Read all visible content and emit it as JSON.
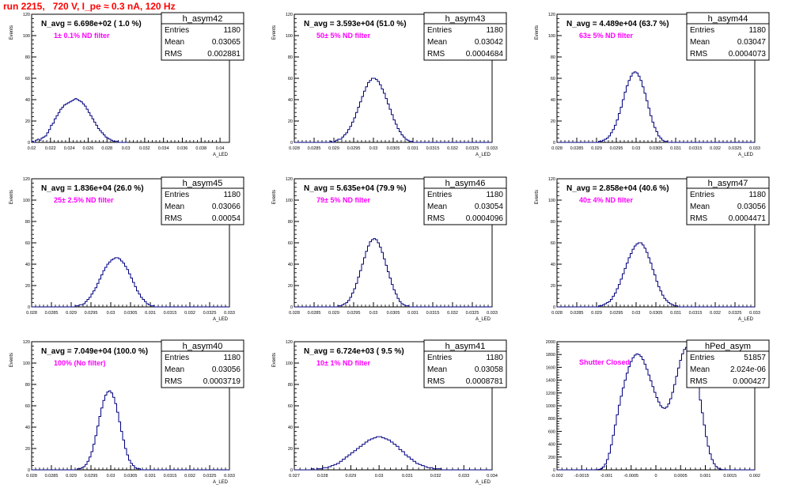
{
  "run_title": "run 2215,   720 V, I_pe ≈ 0.3 nA, 120 Hz",
  "colors": {
    "histogram": "#000080",
    "annotation": "#ff00ff",
    "run_title": "#ff0000",
    "frame": "#000000"
  },
  "stats_labels": {
    "entries": "Entries",
    "mean": "Mean",
    "rms": "RMS"
  },
  "chart_data": [
    {
      "type": "histogram",
      "title": "h_asym42",
      "navg": "N_avg = 6.698e+02 ( 1.0 %)",
      "filter": "1± 0.1% ND filter",
      "ylabel": "Events",
      "xlabel": "A_LED",
      "entries": "1180",
      "mean": "0.03065",
      "rms": "0.002881",
      "xlim": [
        0.02,
        0.041
      ],
      "ylim": [
        0,
        120
      ],
      "xticks": [
        0.02,
        0.022,
        0.024,
        0.026,
        0.028,
        0.03,
        0.032,
        0.034,
        0.036,
        0.038,
        0.04
      ],
      "xtick_labels": [
        "0.02",
        "0.022",
        "0.024",
        "0.026",
        "0.028",
        "0.03",
        "0.032",
        "0.034",
        "0.036",
        "0.038",
        "0.04"
      ],
      "yticks": [
        0,
        20,
        40,
        60,
        80,
        100,
        120
      ],
      "ytick_labels": [
        "0",
        "20",
        "40",
        "60",
        "80",
        "100",
        "120"
      ],
      "bin_width": 0.0002,
      "values": [
        1,
        0,
        2,
        3,
        2,
        4,
        5,
        6,
        9,
        12,
        16,
        18,
        22,
        25,
        28,
        31,
        33,
        35,
        36,
        37,
        38,
        39,
        40,
        41,
        40,
        39,
        38,
        36,
        34,
        31,
        28,
        25,
        22,
        19,
        16,
        13,
        11,
        9,
        7,
        5,
        4,
        3,
        2,
        1,
        1,
        1,
        0,
        0,
        0,
        0,
        0
      ]
    },
    {
      "type": "histogram",
      "title": "h_asym43",
      "navg": "N_avg = 3.593e+04 (51.0 %)",
      "filter": "50± 5% ND filter",
      "ylabel": "Events",
      "xlabel": "A_LED",
      "entries": "1180",
      "mean": "0.03042",
      "rms": "0.0004684",
      "xlim": [
        0.028,
        0.033
      ],
      "ylim": [
        0,
        120
      ],
      "xticks": [
        0.028,
        0.0285,
        0.029,
        0.0295,
        0.03,
        0.0305,
        0.031,
        0.0315,
        0.032,
        0.0325,
        0.033
      ],
      "xtick_labels": [
        "0.028",
        "0.0285",
        "0.029",
        "0.0295",
        "0.03",
        "0.0305",
        "0.031",
        "0.0315",
        "0.032",
        "0.0325",
        "0.033"
      ],
      "yticks": [
        0,
        20,
        40,
        60,
        80,
        100,
        120
      ],
      "ytick_labels": [
        "0",
        "20",
        "40",
        "60",
        "80",
        "100",
        "120"
      ],
      "bin_width": 5e-05,
      "values": [
        0,
        0,
        0,
        0,
        0,
        0,
        0,
        0,
        0,
        0,
        0,
        0,
        0,
        0,
        0,
        0,
        0,
        0,
        1,
        0,
        1,
        2,
        3,
        3,
        5,
        7,
        9,
        12,
        15,
        19,
        23,
        28,
        33,
        38,
        43,
        48,
        52,
        56,
        58,
        60,
        60,
        59,
        57,
        54,
        50,
        46,
        41,
        36,
        31,
        26,
        21,
        17,
        13,
        10,
        7,
        5,
        3,
        2,
        1,
        1,
        0,
        0,
        0,
        0,
        0,
        0,
        0,
        0,
        0,
        0,
        0,
        0,
        0,
        0,
        0,
        0,
        0,
        0,
        0,
        0,
        0,
        0,
        0,
        0,
        0,
        0,
        0,
        0,
        0,
        0,
        0,
        0,
        0,
        0,
        0,
        0,
        0,
        0,
        0,
        0
      ]
    },
    {
      "type": "histogram",
      "title": "h_asym44",
      "navg": "N_avg = 4.489e+04 (63.7 %)",
      "filter": "63± 5% ND filter",
      "ylabel": "Events",
      "xlabel": "A_LED",
      "entries": "1180",
      "mean": "0.03047",
      "rms": "0.0004073",
      "xlim": [
        0.028,
        0.033
      ],
      "ylim": [
        0,
        120
      ],
      "xticks": [
        0.028,
        0.0285,
        0.029,
        0.0295,
        0.03,
        0.0305,
        0.031,
        0.0315,
        0.032,
        0.0325,
        0.033
      ],
      "xtick_labels": [
        "0.028",
        "0.0285",
        "0.029",
        "0.0295",
        "0.03",
        "0.0305",
        "0.031",
        "0.0315",
        "0.032",
        "0.0325",
        "0.033"
      ],
      "yticks": [
        0,
        20,
        40,
        60,
        80,
        100,
        120
      ],
      "ytick_labels": [
        "0",
        "20",
        "40",
        "60",
        "80",
        "100",
        "120"
      ],
      "bin_width": 5e-05,
      "values": [
        0,
        0,
        0,
        0,
        0,
        0,
        0,
        0,
        0,
        0,
        0,
        0,
        0,
        0,
        0,
        0,
        0,
        0,
        0,
        0,
        0,
        1,
        1,
        2,
        3,
        4,
        6,
        9,
        12,
        16,
        21,
        27,
        33,
        40,
        47,
        53,
        58,
        62,
        65,
        66,
        65,
        62,
        58,
        52,
        46,
        39,
        32,
        25,
        19,
        14,
        10,
        6,
        4,
        2,
        1,
        1,
        0,
        0,
        0,
        0,
        0,
        0,
        0,
        0,
        0,
        0,
        0,
        0,
        0,
        0,
        0,
        0,
        0,
        0,
        0,
        0,
        0,
        0,
        0,
        0,
        0,
        0,
        0,
        0,
        0,
        0,
        0,
        0,
        0,
        0,
        0,
        0,
        0,
        0,
        0,
        0,
        0,
        0,
        0,
        0
      ]
    },
    {
      "type": "histogram",
      "title": "h_asym45",
      "navg": "N_avg = 1.836e+04 (26.0 %)",
      "filter": "25± 2.5% ND filter",
      "ylabel": "Events",
      "xlabel": "A_LED",
      "entries": "1180",
      "mean": "0.03066",
      "rms": "0.00054",
      "xlim": [
        0.028,
        0.033
      ],
      "ylim": [
        0,
        120
      ],
      "xticks": [
        0.028,
        0.0285,
        0.029,
        0.0295,
        0.03,
        0.0305,
        0.031,
        0.0315,
        0.032,
        0.0325,
        0.033
      ],
      "xtick_labels": [
        "0.028",
        "0.0285",
        "0.029",
        "0.0295",
        "0.03",
        "0.0305",
        "0.031",
        "0.0315",
        "0.032",
        "0.0325",
        "0.033"
      ],
      "yticks": [
        0,
        20,
        40,
        60,
        80,
        100,
        120
      ],
      "ytick_labels": [
        "0",
        "20",
        "40",
        "60",
        "80",
        "100",
        "120"
      ],
      "bin_width": 5e-05,
      "values": [
        0,
        0,
        0,
        0,
        0,
        0,
        0,
        0,
        0,
        0,
        0,
        0,
        0,
        0,
        0,
        0,
        0,
        0,
        0,
        0,
        0,
        0,
        1,
        1,
        2,
        2,
        3,
        5,
        7,
        9,
        12,
        15,
        18,
        22,
        26,
        30,
        34,
        37,
        40,
        42,
        44,
        45,
        46,
        46,
        45,
        43,
        41,
        38,
        35,
        31,
        27,
        23,
        19,
        15,
        12,
        9,
        7,
        5,
        3,
        2,
        1,
        1,
        0,
        0,
        0,
        0,
        0,
        0,
        0,
        0,
        0,
        0,
        0,
        0,
        0,
        0,
        0,
        0,
        0,
        0,
        0,
        0,
        0,
        0,
        0,
        0,
        0,
        0,
        0,
        0,
        0,
        0,
        0,
        0,
        0,
        0,
        0,
        0,
        0,
        0
      ]
    },
    {
      "type": "histogram",
      "title": "h_asym46",
      "navg": "N_avg = 5.635e+04 (79.9 %)",
      "filter": "79± 5% ND filter",
      "ylabel": "Events",
      "xlabel": "A_LED",
      "entries": "1180",
      "mean": "0.03054",
      "rms": "0.0004096",
      "xlim": [
        0.028,
        0.033
      ],
      "ylim": [
        0,
        120
      ],
      "xticks": [
        0.028,
        0.0285,
        0.029,
        0.0295,
        0.03,
        0.0305,
        0.031,
        0.0315,
        0.032,
        0.0325,
        0.033
      ],
      "xtick_labels": [
        "0.028",
        "0.0285",
        "0.029",
        "0.0295",
        "0.03",
        "0.0305",
        "0.031",
        "0.0315",
        "0.032",
        "0.0325",
        "0.033"
      ],
      "yticks": [
        0,
        20,
        40,
        60,
        80,
        100,
        120
      ],
      "ytick_labels": [
        "0",
        "20",
        "40",
        "60",
        "80",
        "100",
        "120"
      ],
      "bin_width": 5e-05,
      "values": [
        0,
        0,
        0,
        0,
        0,
        0,
        0,
        0,
        0,
        0,
        0,
        0,
        0,
        0,
        0,
        0,
        0,
        0,
        0,
        0,
        0,
        0,
        1,
        1,
        2,
        3,
        4,
        6,
        9,
        13,
        17,
        22,
        28,
        34,
        40,
        46,
        52,
        57,
        61,
        63,
        64,
        63,
        60,
        56,
        51,
        45,
        39,
        33,
        27,
        21,
        16,
        12,
        8,
        5,
        3,
        2,
        1,
        1,
        0,
        0,
        0,
        0,
        0,
        0,
        0,
        0,
        0,
        0,
        0,
        0,
        0,
        0,
        0,
        0,
        0,
        0,
        0,
        0,
        0,
        0,
        0,
        0,
        0,
        0,
        0,
        0,
        0,
        0,
        0,
        0,
        0,
        0,
        0,
        0,
        0,
        0,
        0,
        0,
        0,
        0
      ]
    },
    {
      "type": "histogram",
      "title": "h_asym47",
      "navg": "N_avg = 2.858e+04 (40.6 %)",
      "filter": "40± 4% ND filter",
      "ylabel": "Events",
      "xlabel": "A_LED",
      "entries": "1180",
      "mean": "0.03056",
      "rms": "0.0004471",
      "xlim": [
        0.028,
        0.033
      ],
      "ylim": [
        0,
        120
      ],
      "xticks": [
        0.028,
        0.0285,
        0.029,
        0.0295,
        0.03,
        0.0305,
        0.031,
        0.0315,
        0.032,
        0.0325,
        0.033
      ],
      "xtick_labels": [
        "0.028",
        "0.0285",
        "0.029",
        "0.0295",
        "0.03",
        "0.0305",
        "0.031",
        "0.0315",
        "0.032",
        "0.0325",
        "0.033"
      ],
      "yticks": [
        0,
        20,
        40,
        60,
        80,
        100,
        120
      ],
      "ytick_labels": [
        "0",
        "20",
        "40",
        "60",
        "80",
        "100",
        "120"
      ],
      "bin_width": 5e-05,
      "values": [
        0,
        0,
        0,
        0,
        0,
        0,
        0,
        0,
        0,
        0,
        0,
        0,
        0,
        0,
        0,
        0,
        0,
        0,
        0,
        0,
        0,
        1,
        1,
        2,
        3,
        4,
        5,
        7,
        10,
        13,
        17,
        21,
        26,
        31,
        36,
        41,
        46,
        50,
        54,
        57,
        59,
        60,
        60,
        58,
        55,
        51,
        46,
        41,
        35,
        30,
        24,
        19,
        15,
        11,
        8,
        6,
        4,
        3,
        2,
        1,
        1,
        0,
        0,
        0,
        0,
        0,
        0,
        0,
        0,
        0,
        0,
        0,
        0,
        0,
        0,
        0,
        0,
        0,
        0,
        0,
        0,
        0,
        0,
        0,
        0,
        0,
        0,
        0,
        0,
        0,
        0,
        0,
        0,
        0,
        0,
        0,
        0,
        0,
        0,
        0
      ]
    },
    {
      "type": "histogram",
      "title": "h_asym40",
      "navg": "N_avg = 7.049e+04 (100.0 %)",
      "filter": "100% (No filter)",
      "ylabel": "Events",
      "xlabel": "A_LED",
      "entries": "1180",
      "mean": "0.03056",
      "rms": "0.0003719",
      "xlim": [
        0.028,
        0.033
      ],
      "ylim": [
        0,
        120
      ],
      "xticks": [
        0.028,
        0.0285,
        0.029,
        0.0295,
        0.03,
        0.0305,
        0.031,
        0.0315,
        0.032,
        0.0325,
        0.033
      ],
      "xtick_labels": [
        "0.028",
        "0.0285",
        "0.029",
        "0.0295",
        "0.03",
        "0.0305",
        "0.031",
        "0.0315",
        "0.032",
        "0.0325",
        "0.033"
      ],
      "yticks": [
        0,
        20,
        40,
        60,
        80,
        100,
        120
      ],
      "ytick_labels": [
        "0",
        "20",
        "40",
        "60",
        "80",
        "100",
        "120"
      ],
      "bin_width": 5e-05,
      "values": [
        0,
        0,
        0,
        0,
        0,
        0,
        0,
        0,
        0,
        0,
        0,
        0,
        0,
        0,
        0,
        0,
        0,
        0,
        0,
        0,
        0,
        0,
        0,
        1,
        1,
        2,
        3,
        5,
        8,
        12,
        17,
        24,
        32,
        41,
        50,
        58,
        65,
        70,
        73,
        74,
        72,
        68,
        62,
        54,
        45,
        36,
        28,
        20,
        14,
        9,
        6,
        4,
        2,
        1,
        1,
        0,
        0,
        0,
        0,
        0,
        0,
        0,
        0,
        0,
        0,
        0,
        0,
        0,
        0,
        0,
        0,
        0,
        0,
        0,
        0,
        0,
        0,
        0,
        0,
        0,
        0,
        0,
        0,
        0,
        0,
        0,
        0,
        0,
        0,
        0,
        0,
        0,
        0,
        0,
        0,
        0,
        0,
        0,
        0,
        0
      ]
    },
    {
      "type": "histogram",
      "title": "h_asym41",
      "navg": "N_avg = 6.724e+03 ( 9.5 %)",
      "filter": "10± 1% ND filter",
      "ylabel": "Events",
      "xlabel": "A_LED",
      "entries": "1180",
      "mean": "0.03058",
      "rms": "0.0008781",
      "xlim": [
        0.027,
        0.034
      ],
      "ylim": [
        0,
        120
      ],
      "xticks": [
        0.027,
        0.028,
        0.029,
        0.03,
        0.031,
        0.032,
        0.033,
        0.034
      ],
      "xtick_labels": [
        "0.027",
        "0.028",
        "0.029",
        "0.03",
        "0.031",
        "0.032",
        "0.033",
        "0.034"
      ],
      "yticks": [
        0,
        20,
        40,
        60,
        80,
        100,
        120
      ],
      "ytick_labels": [
        "0",
        "20",
        "40",
        "60",
        "80",
        "100",
        "120"
      ],
      "bin_width": 0.0001,
      "values": [
        0,
        0,
        0,
        0,
        0,
        0,
        1,
        0,
        1,
        1,
        2,
        2,
        3,
        4,
        5,
        6,
        8,
        10,
        12,
        14,
        16,
        18,
        20,
        22,
        24,
        26,
        28,
        29,
        30,
        31,
        31,
        30,
        29,
        28,
        26,
        24,
        22,
        19,
        17,
        14,
        12,
        10,
        8,
        6,
        5,
        4,
        3,
        2,
        2,
        1,
        1,
        1,
        0,
        0,
        0,
        0,
        0,
        0,
        0,
        0,
        0,
        0,
        0,
        0,
        0,
        0,
        0,
        0,
        0,
        0
      ]
    },
    {
      "type": "histogram",
      "title": "hPed_asym",
      "navg": "",
      "filter": "Shutter Closed",
      "ylabel": "",
      "xlabel": "",
      "entries": "51857",
      "mean": "2.024e-06",
      "rms": "0.000427",
      "xlim": [
        -0.002,
        0.002
      ],
      "ylim": [
        0,
        2000
      ],
      "xticks": [
        -0.002,
        -0.0015,
        -0.001,
        -0.0005,
        0,
        0.0005,
        0.001,
        0.0015,
        0.002
      ],
      "xtick_labels": [
        "-0.002",
        "-0.0015",
        "-0.001",
        "-0.0005",
        "0",
        "0.0005",
        "0.001",
        "0.0015",
        "0.002"
      ],
      "yticks": [
        0,
        200,
        400,
        600,
        800,
        1000,
        1200,
        1400,
        1600,
        1800,
        2000
      ],
      "ytick_labels": [
        "0",
        "200",
        "400",
        "600",
        "800",
        "1000",
        "1200",
        "1400",
        "1600",
        "1800",
        "2000"
      ],
      "bin_width": 4e-05,
      "values": [
        0,
        0,
        0,
        0,
        0,
        0,
        0,
        0,
        0,
        0,
        0,
        0,
        0,
        0,
        0,
        0,
        0,
        0,
        0,
        1,
        3,
        8,
        20,
        45,
        90,
        160,
        260,
        390,
        540,
        700,
        860,
        1010,
        1150,
        1280,
        1400,
        1510,
        1610,
        1690,
        1750,
        1790,
        1810,
        1800,
        1770,
        1720,
        1650,
        1570,
        1480,
        1390,
        1300,
        1210,
        1130,
        1060,
        1000,
        970,
        960,
        980,
        1030,
        1110,
        1210,
        1330,
        1460,
        1590,
        1710,
        1810,
        1880,
        1910,
        1900,
        1850,
        1760,
        1630,
        1470,
        1290,
        1090,
        890,
        700,
        520,
        370,
        250,
        160,
        95,
        52,
        27,
        12,
        5,
        2,
        1,
        0,
        0,
        0,
        0,
        0,
        0,
        0,
        0,
        0,
        0,
        0,
        0,
        0,
        0
      ]
    }
  ]
}
